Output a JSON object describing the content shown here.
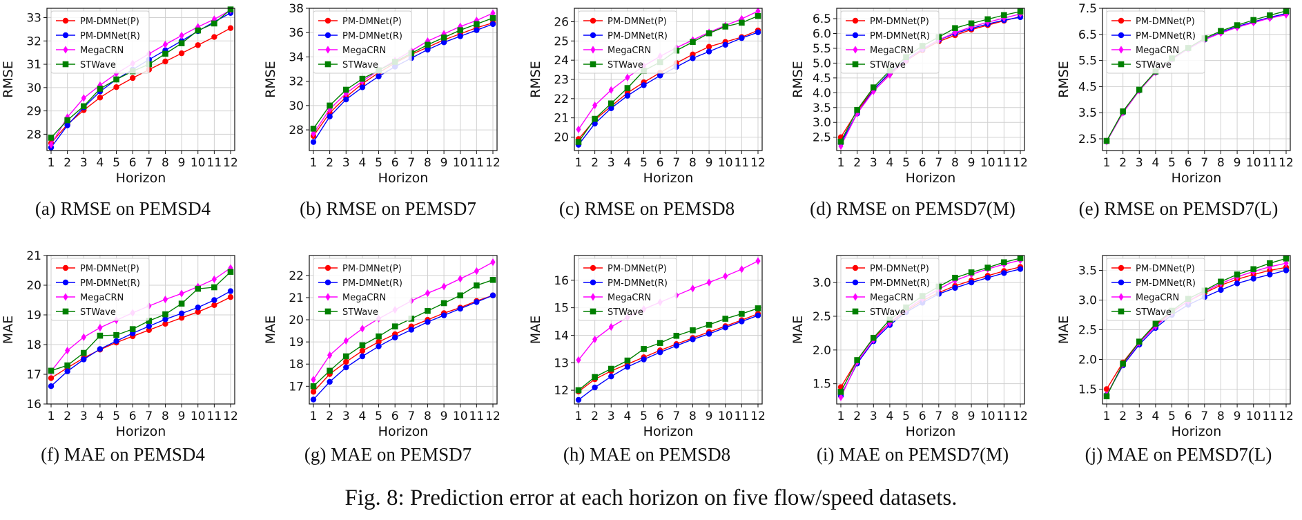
{
  "figure_caption": "Fig. 8: Prediction error at each horizon on five flow/speed datasets.",
  "colors": {
    "PM-DMNet(P)": "#ff0000",
    "PM-DMNet(R)": "#0000ff",
    "MegaCRN": "#ff00ff",
    "STWave": "#008000"
  },
  "chart_data": [
    {
      "type": "line",
      "caption": "(a) RMSE on PEMSD4",
      "xlabel": "Horizon",
      "ylabel": "RMSE",
      "categories": [
        "1",
        "2",
        "3",
        "4",
        "5",
        "6",
        "7",
        "8",
        "9",
        "10",
        "11",
        "12"
      ],
      "ylim": [
        27.3,
        33.4
      ],
      "yticks": [
        "28",
        "29",
        "30",
        "31",
        "32",
        "33"
      ],
      "series": [
        {
          "name": "PM-DMNet(P)",
          "marker": "circle",
          "values": [
            27.62,
            28.42,
            29.03,
            29.57,
            30.02,
            30.41,
            30.77,
            31.12,
            31.47,
            31.82,
            32.17,
            32.55
          ]
        },
        {
          "name": "PM-DMNet(R)",
          "marker": "circle",
          "values": [
            27.43,
            28.38,
            29.15,
            29.83,
            30.35,
            30.77,
            31.2,
            31.6,
            32.0,
            32.42,
            32.82,
            33.2
          ]
        },
        {
          "name": "MegaCRN",
          "marker": "diamond",
          "values": [
            27.55,
            28.73,
            29.55,
            30.1,
            30.6,
            31.03,
            31.45,
            31.85,
            32.23,
            32.6,
            32.93,
            33.32
          ]
        },
        {
          "name": "STWave",
          "marker": "square",
          "values": [
            27.85,
            28.6,
            29.2,
            29.95,
            30.35,
            30.7,
            31.0,
            31.45,
            31.9,
            32.45,
            32.75,
            33.35
          ]
        }
      ]
    },
    {
      "type": "line",
      "caption": "(b) RMSE on PEMSD7",
      "xlabel": "Horizon",
      "ylabel": "RMSE",
      "categories": [
        "1",
        "2",
        "3",
        "4",
        "5",
        "6",
        "7",
        "8",
        "9",
        "10",
        "11",
        "12"
      ],
      "ylim": [
        26.3,
        38.0
      ],
      "yticks": [
        "28",
        "30",
        "32",
        "34",
        "36",
        "38"
      ],
      "series": [
        {
          "name": "PM-DMNet(P)",
          "marker": "circle",
          "values": [
            27.5,
            29.4,
            30.7,
            31.8,
            32.7,
            33.5,
            34.2,
            34.8,
            35.4,
            35.9,
            36.4,
            36.8
          ]
        },
        {
          "name": "PM-DMNet(R)",
          "marker": "circle",
          "values": [
            27.0,
            29.1,
            30.5,
            31.5,
            32.4,
            33.2,
            33.9,
            34.6,
            35.2,
            35.7,
            36.2,
            36.7
          ]
        },
        {
          "name": "MegaCRN",
          "marker": "diamond",
          "values": [
            27.7,
            29.7,
            31.0,
            32.0,
            32.9,
            33.7,
            34.5,
            35.3,
            35.9,
            36.5,
            37.0,
            37.6
          ]
        },
        {
          "name": "STWave",
          "marker": "square",
          "values": [
            28.1,
            30.0,
            31.3,
            32.2,
            32.9,
            33.6,
            34.3,
            35.0,
            35.6,
            36.2,
            36.7,
            37.2
          ]
        }
      ]
    },
    {
      "type": "line",
      "caption": "(c) RMSE on PEMSD8",
      "xlabel": "Horizon",
      "ylabel": "RMSE",
      "categories": [
        "1",
        "2",
        "3",
        "4",
        "5",
        "6",
        "7",
        "8",
        "9",
        "10",
        "11",
        "12"
      ],
      "ylim": [
        19.3,
        26.7
      ],
      "yticks": [
        "20",
        "21",
        "22",
        "23",
        "24",
        "25",
        "26"
      ],
      "series": [
        {
          "name": "PM-DMNet(P)",
          "marker": "circle",
          "values": [
            19.9,
            20.9,
            21.6,
            22.3,
            22.85,
            23.35,
            23.85,
            24.3,
            24.7,
            24.95,
            25.2,
            25.55
          ]
        },
        {
          "name": "PM-DMNet(R)",
          "marker": "circle",
          "values": [
            19.6,
            20.7,
            21.5,
            22.15,
            22.7,
            23.2,
            23.65,
            24.1,
            24.45,
            24.8,
            25.15,
            25.45
          ]
        },
        {
          "name": "MegaCRN",
          "marker": "diamond",
          "values": [
            20.4,
            21.65,
            22.45,
            23.1,
            23.7,
            24.2,
            24.65,
            25.05,
            25.45,
            25.8,
            26.15,
            26.55
          ]
        },
        {
          "name": "STWave",
          "marker": "square",
          "values": [
            19.75,
            20.95,
            21.75,
            22.55,
            23.45,
            23.9,
            24.5,
            24.95,
            25.4,
            25.75,
            25.95,
            26.3
          ]
        }
      ]
    },
    {
      "type": "line",
      "caption": "(d) RMSE on PEMSD7(M)",
      "xlabel": "Horizon",
      "ylabel": "RMSE",
      "categories": [
        "1",
        "2",
        "3",
        "4",
        "5",
        "6",
        "7",
        "8",
        "9",
        "10",
        "11",
        "12"
      ],
      "ylim": [
        2.05,
        6.85
      ],
      "yticks": [
        "2.5",
        "3.0",
        "3.5",
        "4.0",
        "4.5",
        "5.0",
        "5.5",
        "6.0",
        "6.5"
      ],
      "series": [
        {
          "name": "PM-DMNet(P)",
          "marker": "circle",
          "values": [
            2.5,
            3.38,
            4.12,
            4.65,
            5.08,
            5.43,
            5.73,
            5.94,
            6.13,
            6.28,
            6.43,
            6.57
          ]
        },
        {
          "name": "PM-DMNet(R)",
          "marker": "circle",
          "values": [
            2.3,
            3.3,
            4.1,
            4.68,
            5.12,
            5.47,
            5.78,
            6.0,
            6.17,
            6.32,
            6.45,
            6.55
          ]
        },
        {
          "name": "MegaCRN",
          "marker": "diamond",
          "values": [
            2.2,
            3.3,
            4.05,
            4.6,
            5.08,
            5.48,
            5.78,
            6.03,
            6.22,
            6.38,
            6.52,
            6.66
          ]
        },
        {
          "name": "STWave",
          "marker": "square",
          "values": [
            2.35,
            3.42,
            4.18,
            4.75,
            5.2,
            5.58,
            5.88,
            6.18,
            6.34,
            6.48,
            6.62,
            6.74
          ]
        }
      ]
    },
    {
      "type": "line",
      "caption": "(e) RMSE on PEMSD7(L)",
      "xlabel": "Horizon",
      "ylabel": "RMSE",
      "categories": [
        "1",
        "2",
        "3",
        "4",
        "5",
        "6",
        "7",
        "8",
        "9",
        "10",
        "11",
        "12"
      ],
      "ylim": [
        2.05,
        7.5
      ],
      "yticks": [
        "2.5",
        "3.5",
        "4.5",
        "5.5",
        "6.5",
        "7.5"
      ],
      "series": [
        {
          "name": "PM-DMNet(P)",
          "marker": "circle",
          "values": [
            2.4,
            3.5,
            4.35,
            5.05,
            5.55,
            5.95,
            6.3,
            6.58,
            6.8,
            6.98,
            7.15,
            7.3
          ]
        },
        {
          "name": "PM-DMNet(R)",
          "marker": "circle",
          "values": [
            2.4,
            3.5,
            4.35,
            5.05,
            5.55,
            5.95,
            6.3,
            6.58,
            6.8,
            6.98,
            7.15,
            7.3
          ]
        },
        {
          "name": "MegaCRN",
          "marker": "diamond",
          "values": [
            2.4,
            3.5,
            4.35,
            5.05,
            5.55,
            5.95,
            6.3,
            6.55,
            6.77,
            6.95,
            7.12,
            7.25
          ]
        },
        {
          "name": "STWave",
          "marker": "square",
          "values": [
            2.42,
            3.55,
            4.38,
            5.08,
            5.58,
            5.98,
            6.35,
            6.63,
            6.85,
            7.05,
            7.23,
            7.4
          ]
        }
      ]
    },
    {
      "type": "line",
      "caption": "(f) MAE on PEMSD4",
      "xlabel": "Horizon",
      "ylabel": "MAE",
      "categories": [
        "1",
        "2",
        "3",
        "4",
        "5",
        "6",
        "7",
        "8",
        "9",
        "10",
        "11",
        "12"
      ],
      "ylim": [
        16.0,
        21.0
      ],
      "yticks": [
        "16",
        "17",
        "18",
        "19",
        "20",
        "21"
      ],
      "series": [
        {
          "name": "PM-DMNet(P)",
          "marker": "circle",
          "values": [
            16.87,
            17.22,
            17.55,
            17.83,
            18.07,
            18.28,
            18.49,
            18.7,
            18.9,
            19.1,
            19.33,
            19.6
          ]
        },
        {
          "name": "PM-DMNet(R)",
          "marker": "circle",
          "values": [
            16.6,
            17.1,
            17.5,
            17.85,
            18.12,
            18.38,
            18.62,
            18.85,
            19.05,
            19.25,
            19.5,
            19.8
          ]
        },
        {
          "name": "MegaCRN",
          "marker": "diamond",
          "values": [
            17.1,
            17.8,
            18.25,
            18.57,
            18.82,
            19.07,
            19.3,
            19.52,
            19.72,
            19.95,
            20.2,
            20.58
          ]
        },
        {
          "name": "STWave",
          "marker": "square",
          "values": [
            17.12,
            17.3,
            17.72,
            18.3,
            18.32,
            18.52,
            18.8,
            19.02,
            19.38,
            19.88,
            19.93,
            20.45
          ]
        }
      ]
    },
    {
      "type": "line",
      "caption": "(g) MAE on PEMSD7",
      "xlabel": "Horizon",
      "ylabel": "MAE",
      "categories": [
        "1",
        "2",
        "3",
        "4",
        "5",
        "6",
        "7",
        "8",
        "9",
        "10",
        "11",
        "12"
      ],
      "ylim": [
        16.2,
        22.9
      ],
      "yticks": [
        "17",
        "18",
        "19",
        "20",
        "21",
        "22"
      ],
      "series": [
        {
          "name": "PM-DMNet(P)",
          "marker": "circle",
          "values": [
            16.75,
            17.55,
            18.1,
            18.6,
            19.0,
            19.35,
            19.7,
            20.0,
            20.3,
            20.55,
            20.85,
            21.1
          ]
        },
        {
          "name": "PM-DMNet(R)",
          "marker": "circle",
          "values": [
            16.4,
            17.2,
            17.85,
            18.35,
            18.8,
            19.2,
            19.55,
            19.9,
            20.2,
            20.5,
            20.8,
            21.1
          ]
        },
        {
          "name": "MegaCRN",
          "marker": "diamond",
          "values": [
            17.3,
            18.4,
            19.05,
            19.6,
            20.05,
            20.45,
            20.85,
            21.2,
            21.5,
            21.85,
            22.2,
            22.6
          ]
        },
        {
          "name": "STWave",
          "marker": "square",
          "values": [
            17.0,
            17.7,
            18.35,
            18.85,
            19.25,
            19.7,
            20.05,
            20.4,
            20.75,
            21.1,
            21.55,
            21.8
          ]
        }
      ]
    },
    {
      "type": "line",
      "caption": "(h) MAE on PEMSD8",
      "xlabel": "Horizon",
      "ylabel": "MAE",
      "categories": [
        "1",
        "2",
        "3",
        "4",
        "5",
        "6",
        "7",
        "8",
        "9",
        "10",
        "11",
        "12"
      ],
      "ylim": [
        11.5,
        16.9
      ],
      "yticks": [
        "12",
        "13",
        "14",
        "15",
        "16"
      ],
      "series": [
        {
          "name": "PM-DMNet(P)",
          "marker": "circle",
          "values": [
            11.95,
            12.4,
            12.7,
            12.95,
            13.2,
            13.45,
            13.68,
            13.9,
            14.12,
            14.33,
            14.55,
            14.78
          ]
        },
        {
          "name": "PM-DMNet(R)",
          "marker": "circle",
          "values": [
            11.65,
            12.1,
            12.5,
            12.85,
            13.12,
            13.38,
            13.62,
            13.85,
            14.05,
            14.28,
            14.5,
            14.72
          ]
        },
        {
          "name": "MegaCRN",
          "marker": "diamond",
          "values": [
            13.1,
            13.85,
            14.3,
            14.65,
            14.95,
            15.2,
            15.45,
            15.7,
            15.92,
            16.15,
            16.4,
            16.7
          ]
        },
        {
          "name": "STWave",
          "marker": "square",
          "values": [
            12.0,
            12.48,
            12.78,
            13.08,
            13.5,
            13.72,
            13.98,
            14.18,
            14.38,
            14.6,
            14.78,
            14.98
          ]
        }
      ]
    },
    {
      "type": "line",
      "caption": "(i) MAE on PEMSD7(M)",
      "xlabel": "Horizon",
      "ylabel": "MAE",
      "categories": [
        "1",
        "2",
        "3",
        "4",
        "5",
        "6",
        "7",
        "8",
        "9",
        "10",
        "11",
        "12"
      ],
      "ylim": [
        1.2,
        3.4
      ],
      "yticks": [
        "1.5",
        "2.0",
        "2.5",
        "3.0"
      ],
      "series": [
        {
          "name": "PM-DMNet(P)",
          "marker": "circle",
          "values": [
            1.45,
            1.85,
            2.18,
            2.4,
            2.58,
            2.73,
            2.85,
            2.95,
            3.03,
            3.1,
            3.17,
            3.23
          ]
        },
        {
          "name": "PM-DMNet(R)",
          "marker": "circle",
          "values": [
            1.32,
            1.8,
            2.13,
            2.37,
            2.56,
            2.7,
            2.83,
            2.92,
            3.0,
            3.07,
            3.14,
            3.2
          ]
        },
        {
          "name": "MegaCRN",
          "marker": "diamond",
          "values": [
            1.3,
            1.82,
            2.15,
            2.4,
            2.6,
            2.76,
            2.9,
            3.03,
            3.12,
            3.2,
            3.27,
            3.33
          ]
        },
        {
          "name": "STWave",
          "marker": "square",
          "values": [
            1.38,
            1.85,
            2.18,
            2.45,
            2.63,
            2.8,
            2.94,
            3.07,
            3.15,
            3.22,
            3.3,
            3.36
          ]
        }
      ]
    },
    {
      "type": "line",
      "caption": "(j) MAE on PEMSD7(L)",
      "xlabel": "Horizon",
      "ylabel": "MAE",
      "categories": [
        "1",
        "2",
        "3",
        "4",
        "5",
        "6",
        "7",
        "8",
        "9",
        "10",
        "11",
        "12"
      ],
      "ylim": [
        1.25,
        3.75
      ],
      "yticks": [
        "1.5",
        "2.0",
        "2.5",
        "3.0",
        "3.5"
      ],
      "series": [
        {
          "name": "PM-DMNet(P)",
          "marker": "circle",
          "values": [
            1.5,
            1.95,
            2.3,
            2.58,
            2.8,
            2.98,
            3.12,
            3.25,
            3.35,
            3.43,
            3.5,
            3.55
          ]
        },
        {
          "name": "PM-DMNet(R)",
          "marker": "circle",
          "values": [
            1.4,
            1.9,
            2.25,
            2.53,
            2.75,
            2.92,
            3.05,
            3.17,
            3.28,
            3.36,
            3.43,
            3.5
          ]
        },
        {
          "name": "MegaCRN",
          "marker": "diamond",
          "values": [
            1.4,
            1.92,
            2.28,
            2.56,
            2.79,
            2.98,
            3.14,
            3.28,
            3.39,
            3.48,
            3.56,
            3.62
          ]
        },
        {
          "name": "STWave",
          "marker": "square",
          "values": [
            1.38,
            1.93,
            2.3,
            2.6,
            2.82,
            3.02,
            3.16,
            3.31,
            3.43,
            3.52,
            3.62,
            3.7
          ]
        }
      ]
    }
  ]
}
